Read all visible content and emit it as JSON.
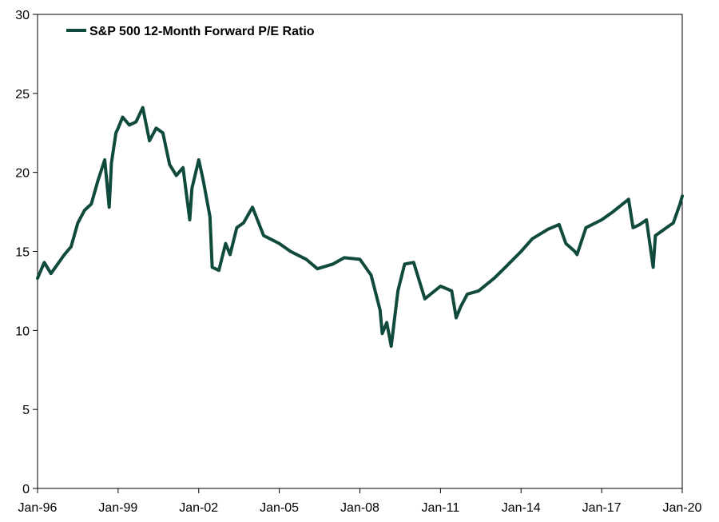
{
  "chart_data": {
    "type": "line",
    "title": "",
    "xlabel": "",
    "ylabel": "",
    "xlim": [
      "Jan-96",
      "Jan-20"
    ],
    "ylim": [
      0,
      30
    ],
    "y_ticks": [
      0,
      5,
      10,
      15,
      20,
      25,
      30
    ],
    "x_ticks": [
      "Jan-96",
      "Jan-99",
      "Jan-02",
      "Jan-05",
      "Jan-08",
      "Jan-11",
      "Jan-14",
      "Jan-17",
      "Jan-20"
    ],
    "grid": false,
    "legend": {
      "position": "top-left",
      "entries": [
        "S&P 500 12-Month Forward P/E Ratio"
      ]
    },
    "colors": {
      "series": "#0f4a3c",
      "axis": "#000000",
      "background": "#ffffff"
    },
    "series": [
      {
        "name": "S&P 500 12-Month Forward P/E Ratio",
        "x": [
          "Jan-96",
          "Apr-96",
          "Jul-96",
          "Oct-96",
          "Jan-97",
          "Apr-97",
          "Jul-97",
          "Oct-97",
          "Jan-98",
          "Apr-98",
          "Jul-98",
          "Sep-98",
          "Oct-98",
          "Dec-98",
          "Jan-99",
          "Mar-99",
          "Jun-99",
          "Sep-99",
          "Dec-99",
          "Mar-00",
          "Jun-00",
          "Sep-00",
          "Dec-00",
          "Mar-01",
          "Jun-01",
          "Sep-01",
          "Oct-01",
          "Jan-02",
          "Mar-02",
          "Jun-02",
          "Jul-02",
          "Oct-02",
          "Jan-03",
          "Mar-03",
          "Jun-03",
          "Sep-03",
          "Jan-04",
          "Jun-04",
          "Jan-05",
          "Jun-05",
          "Jan-06",
          "Jun-06",
          "Jan-07",
          "Jun-07",
          "Jan-08",
          "Jun-08",
          "Oct-08",
          "Nov-08",
          "Jan-09",
          "Mar-09",
          "Jun-09",
          "Sep-09",
          "Jan-10",
          "Jun-10",
          "Jan-11",
          "Jun-11",
          "Aug-11",
          "Oct-11",
          "Jan-12",
          "Jun-12",
          "Jan-13",
          "Jun-13",
          "Jan-14",
          "Jun-14",
          "Jan-15",
          "Jun-15",
          "Sep-15",
          "Jan-16",
          "Feb-16",
          "Jun-16",
          "Jan-17",
          "Jun-17",
          "Jan-18",
          "Mar-18",
          "Jun-18",
          "Sep-18",
          "Dec-18",
          "Jan-19",
          "Jun-19",
          "Sep-19",
          "Dec-19",
          "Jan-20"
        ],
        "values": [
          13.3,
          14.3,
          13.6,
          14.2,
          14.8,
          15.3,
          16.8,
          17.6,
          18.0,
          19.5,
          20.8,
          17.8,
          20.6,
          22.5,
          22.8,
          23.5,
          23.0,
          23.2,
          24.1,
          22.0,
          22.8,
          22.5,
          20.5,
          19.8,
          20.3,
          17.0,
          19.0,
          20.8,
          19.5,
          17.2,
          14.0,
          13.8,
          15.5,
          14.8,
          16.5,
          16.8,
          17.8,
          16.0,
          15.5,
          15.0,
          14.5,
          13.9,
          14.2,
          14.6,
          14.5,
          13.5,
          11.3,
          9.8,
          10.5,
          9.0,
          12.5,
          14.2,
          14.3,
          12.0,
          12.8,
          12.5,
          10.8,
          11.5,
          12.3,
          12.5,
          13.3,
          14.0,
          15.0,
          15.8,
          16.4,
          16.7,
          15.5,
          15.0,
          14.8,
          16.5,
          17.0,
          17.5,
          18.3,
          16.5,
          16.7,
          17.0,
          14.0,
          16.0,
          16.5,
          16.8,
          18.0,
          18.5
        ]
      }
    ]
  }
}
